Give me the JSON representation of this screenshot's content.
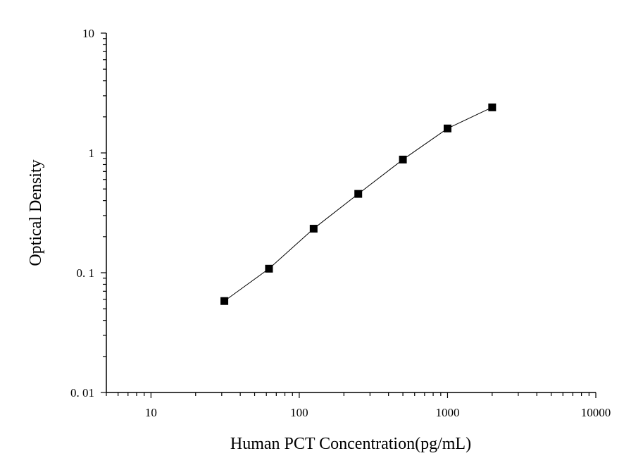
{
  "chart_data": {
    "type": "scatter",
    "title": "",
    "xlabel": "Human PCT Concentration(pg/mL)",
    "ylabel": "Optical Density",
    "x_scale": "log",
    "y_scale": "log",
    "xlim": [
      5,
      10000
    ],
    "ylim": [
      0.01,
      10
    ],
    "x_ticks": [
      {
        "value": 10,
        "label": "10"
      },
      {
        "value": 100,
        "label": "100"
      },
      {
        "value": 1000,
        "label": "1000"
      },
      {
        "value": 10000,
        "label": "10000"
      }
    ],
    "y_ticks": [
      {
        "value": 0.01,
        "label": "0. 01"
      },
      {
        "value": 0.1,
        "label": "0. 1"
      },
      {
        "value": 1,
        "label": "1"
      },
      {
        "value": 10,
        "label": "10"
      }
    ],
    "grid": false,
    "series": [
      {
        "x": [
          31.25,
          62.5,
          125,
          250,
          500,
          1000,
          2000
        ],
        "y": [
          0.058,
          0.108,
          0.233,
          0.455,
          0.88,
          1.6,
          2.4
        ],
        "marker": "square",
        "line": true,
        "color": "#000000"
      }
    ]
  }
}
